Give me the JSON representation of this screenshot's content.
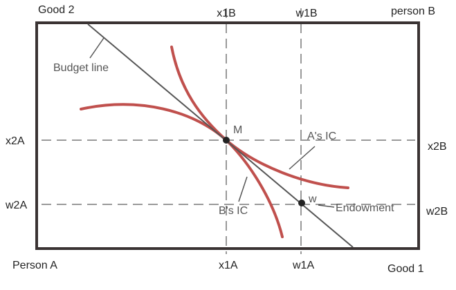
{
  "corners": {
    "top_left": "Good 2",
    "top_right": "person B",
    "bottom_left": "Person A",
    "bottom_right": "Good 1"
  },
  "top_labels": [
    "x1B",
    "w1B"
  ],
  "bottom_labels": [
    "x1A",
    "w1A"
  ],
  "left_labels": [
    "x2A",
    "w2A"
  ],
  "right_labels": [
    "x2B",
    "w2B"
  ],
  "annotations": {
    "budget_line": "Budget line",
    "point_m": "M",
    "a_ic": "A's IC",
    "b_ic": "B's IC",
    "point_w": "w",
    "endowment": "Endowment"
  }
}
